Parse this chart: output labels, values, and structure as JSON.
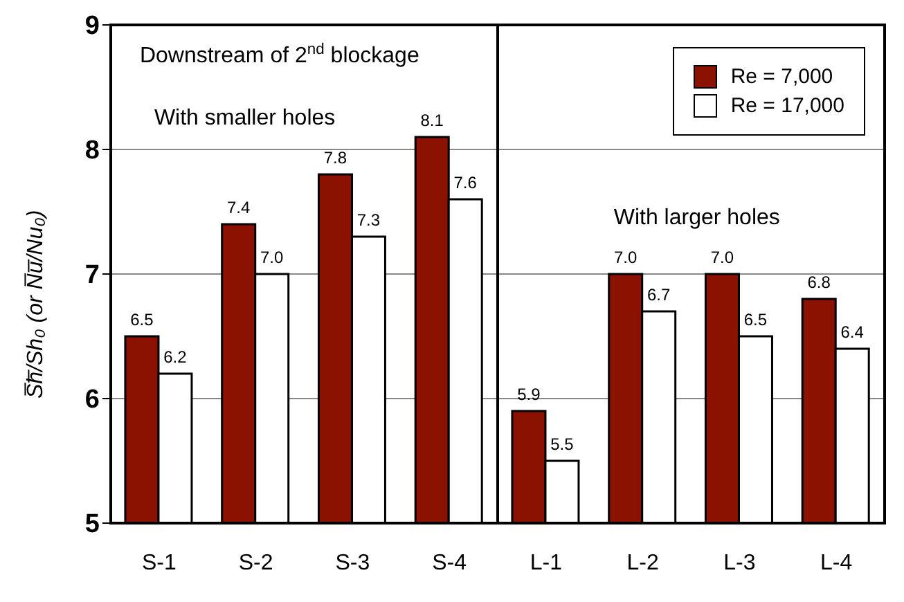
{
  "chart_data": {
    "type": "bar",
    "title": "Downstream of 2$^{nd}$ blockage",
    "ylabel": "S̅h̅/Sh₀ (or N̅u̅/Nu₀)",
    "categories": [
      "S-1",
      "S-2",
      "S-3",
      "S-4",
      "L-1",
      "L-2",
      "L-3",
      "L-4"
    ],
    "series": [
      {
        "name": "Re = 7,000",
        "color": "#8b1100",
        "values": [
          6.5,
          7.4,
          7.8,
          8.1,
          5.9,
          7.0,
          7.0,
          6.8
        ],
        "value_labels": [
          "6.5",
          "7.4",
          "7.8",
          "8.1",
          "5.9",
          "7.0",
          "7.0",
          "6.8"
        ]
      },
      {
        "name": "Re = 17,000",
        "color": "#ffffff",
        "values": [
          6.2,
          7.0,
          7.3,
          7.6,
          5.5,
          6.7,
          6.5,
          6.4
        ],
        "value_labels": [
          "6.2",
          "7.0",
          "7.3",
          "7.6",
          "5.5",
          "6.7",
          "6.5",
          "6.4"
        ]
      }
    ],
    "annotations": [
      "With smaller holes",
      "With larger holes"
    ],
    "ylim": [
      5,
      9
    ],
    "yticks": [
      5,
      6,
      7,
      8,
      9
    ],
    "grid": "y",
    "legend": "top right"
  }
}
